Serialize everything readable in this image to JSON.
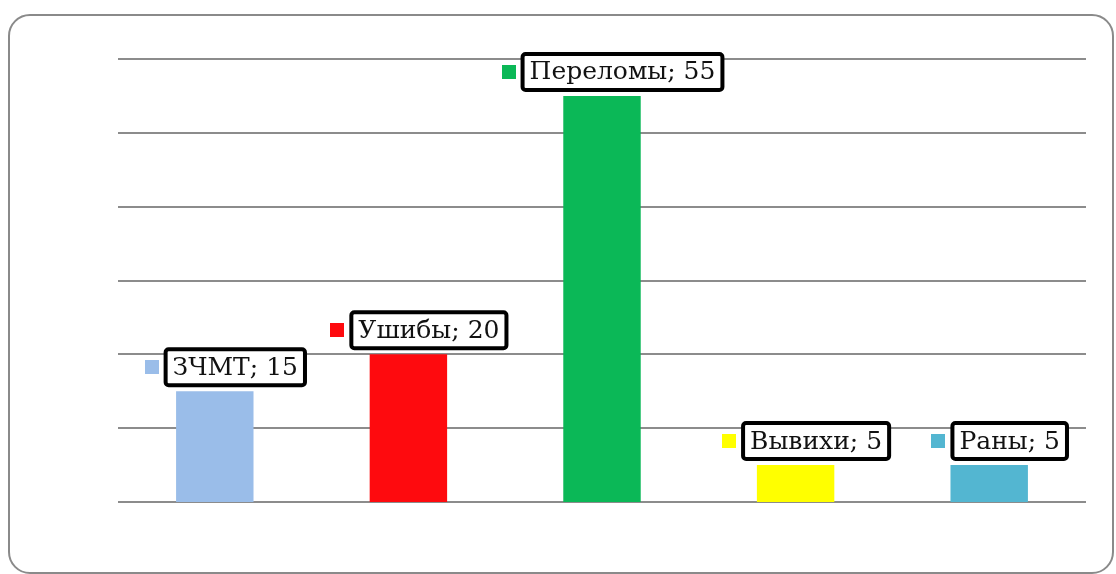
{
  "chart_data": {
    "type": "bar",
    "categories": [
      null,
      null,
      null,
      null,
      null
    ],
    "values": [
      15,
      20,
      55,
      5,
      5
    ],
    "colors": [
      "#9abde9",
      "#fe0a0e",
      "#0bb857",
      "#ffff00",
      "#53b6d1"
    ],
    "value_labels": [
      "ЗЧМТ; 15",
      "Ушибы; 20",
      "Переломы; 55",
      "Вывихи; 5",
      "Раны; 5"
    ],
    "grid": "y",
    "tick_labels": false
  }
}
